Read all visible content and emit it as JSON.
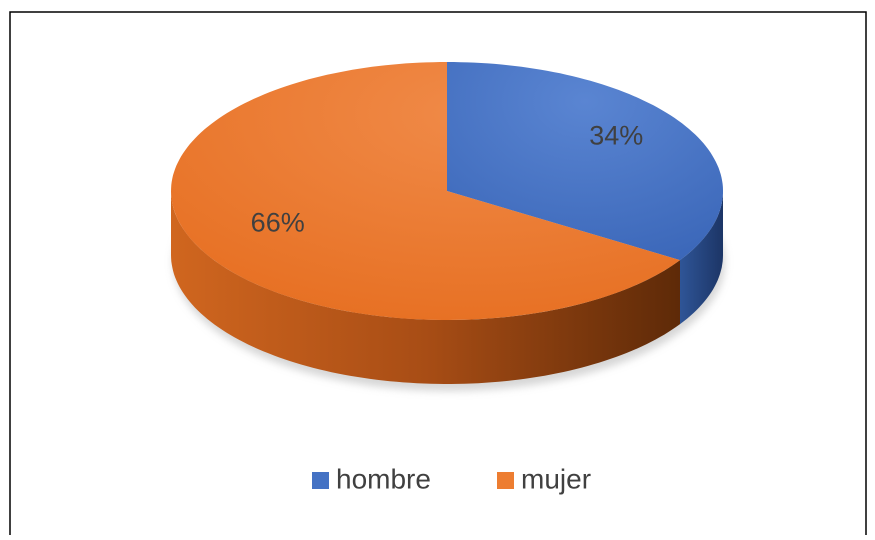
{
  "chart_data": {
    "type": "pie",
    "categories": [
      "hombre",
      "mujer"
    ],
    "values": [
      34,
      66
    ],
    "value_labels": [
      "34%",
      "66%"
    ],
    "colors": [
      "#4472c4",
      "#ed7d31"
    ],
    "legend": "bottom"
  }
}
